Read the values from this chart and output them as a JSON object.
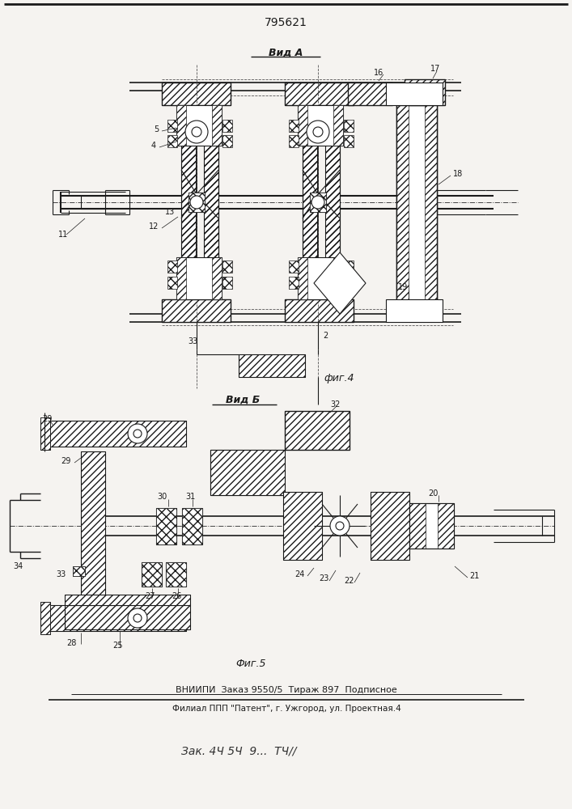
{
  "title": "795621",
  "view_a_label": "Вид А",
  "view_b_label": "Вид Б",
  "fig4_label": "фиг.4",
  "fig5_label": "Фиг.5",
  "footer1": "ВНИИПИ  Заказ 9550/5  Тираж 897  Подписное",
  "footer2": "Филиал ППП \"Патент\", г. Ужгород, ул. Проектная.4",
  "footer3": "Зак. 4Ч 5Ч  9...  ТЧ//",
  "bg_color": "#f5f3f0",
  "lc": "#1a1a1a",
  "fig_width": 7.07,
  "fig_height": 10.0,
  "dpi": 100
}
